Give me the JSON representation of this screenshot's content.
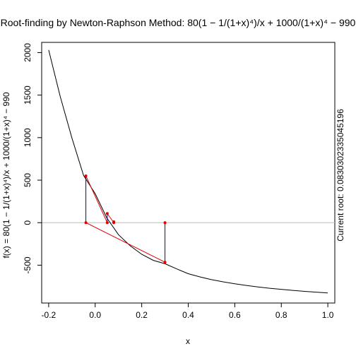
{
  "chart_data": {
    "type": "line",
    "title": "Root-finding by Newton-Raphson Method: 80(1 − 1/(1+x)⁴)/x + 1000/(1+x)⁴ − 990",
    "xlabel": "x",
    "ylabel": "f(x) = 80(1 − 1/(1+x)⁴)/x + 1000/(1+x)⁴ − 990",
    "right_label": "Current root: 0.0830302335045196",
    "xlim": [
      -0.23,
      1.03
    ],
    "ylim": [
      -945,
      2120
    ],
    "xticks": [
      -0.2,
      0.0,
      0.2,
      0.4,
      0.6,
      0.8,
      1.0
    ],
    "xtick_labels": [
      "-0.2",
      "0.0",
      "0.2",
      "0.4",
      "0.6",
      "0.8",
      "1.0"
    ],
    "yticks": [
      -500,
      0,
      500,
      1000,
      1500,
      2000
    ],
    "ytick_labels": [
      "-500",
      "0",
      "500",
      "1000",
      "1500",
      "2000"
    ],
    "reference_line_y": 0,
    "function_curve": {
      "x": [
        -0.2,
        -0.15,
        -0.1,
        -0.05,
        0.0,
        0.05,
        0.1,
        0.15,
        0.2,
        0.25,
        0.3,
        0.35,
        0.4,
        0.45,
        0.5,
        0.55,
        0.6,
        0.65,
        0.7,
        0.75,
        0.8,
        0.85,
        0.9,
        0.95,
        1.0
      ],
      "y": [
        2030,
        1482,
        996,
        555,
        340,
        56,
        -141,
        -271,
        -372,
        -443,
        -483,
        -543,
        -600,
        -638,
        -670,
        -696,
        -718,
        -738,
        -756,
        -771,
        -784,
        -796,
        -808,
        -817,
        -826
      ]
    },
    "iterations": {
      "x": [
        0.3,
        -0.04,
        0.052,
        0.08
      ],
      "fx": [
        -465,
        550,
        108,
        10
      ]
    },
    "colors": {
      "curve": "#000000",
      "vertical_segments": "#0000bb",
      "tangent_segments": "#dd0000",
      "points": "#dd0000",
      "reference_line": "#bbbbbb"
    }
  }
}
